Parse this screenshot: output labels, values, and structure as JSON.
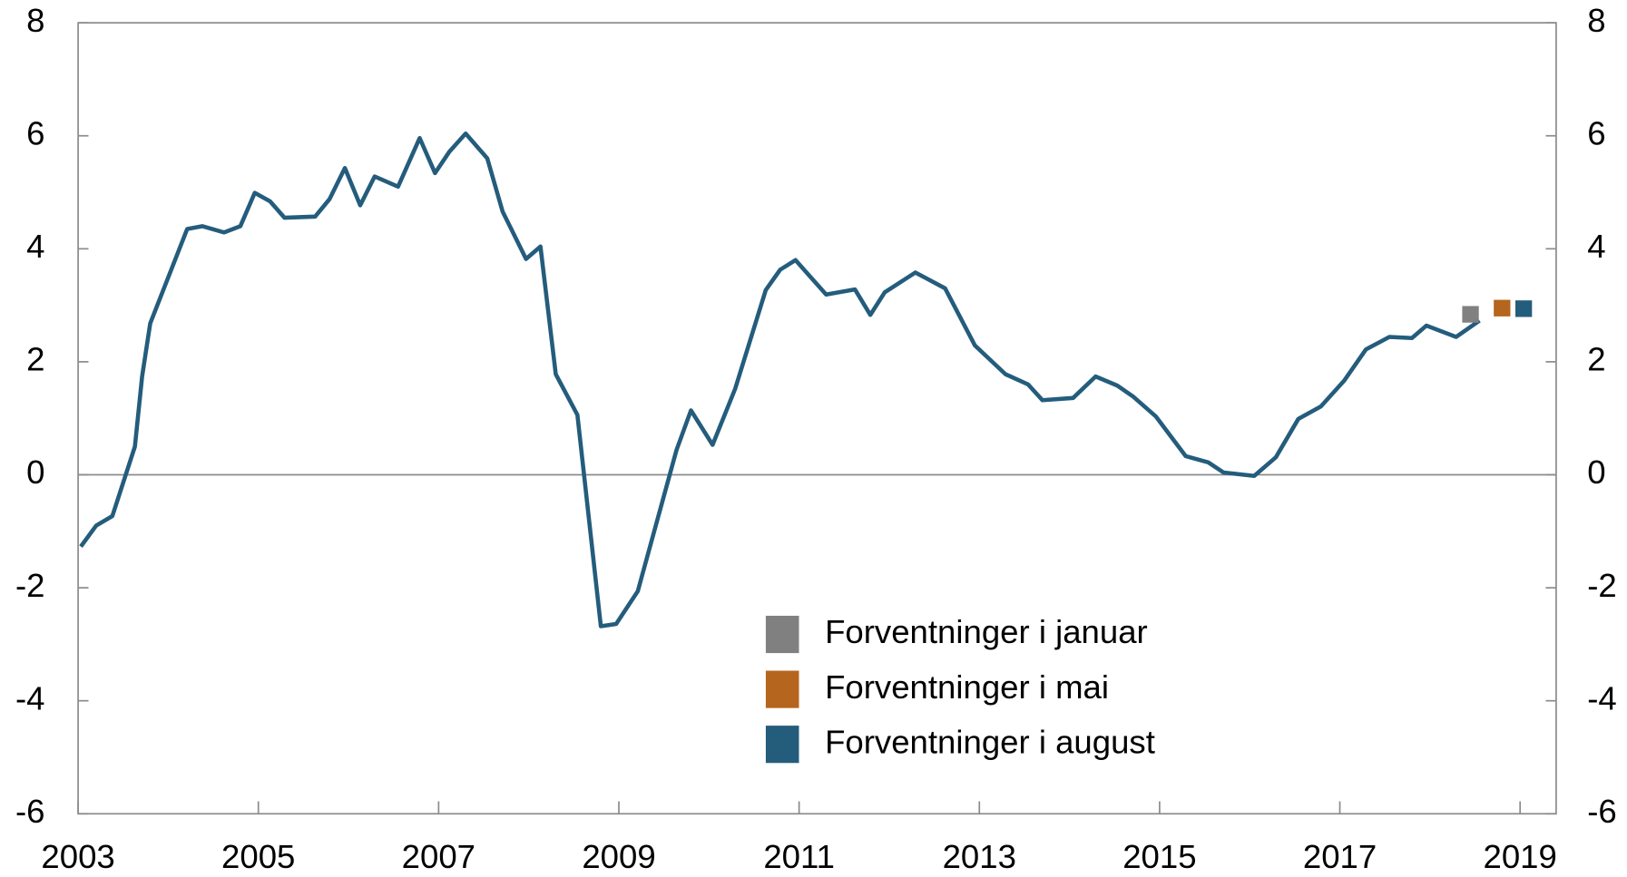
{
  "chart_data": {
    "type": "line",
    "xlim": [
      2003,
      2019.4
    ],
    "xticks": [
      2003,
      2005,
      2007,
      2009,
      2011,
      2013,
      2015,
      2017,
      2019
    ],
    "ylim": [
      -6,
      8
    ],
    "yticks": [
      -6,
      -4,
      -2,
      0,
      2,
      4,
      6,
      8
    ],
    "y2lim": [
      -6,
      8
    ],
    "y2ticks": [
      -6,
      -4,
      -2,
      0,
      2,
      4,
      6,
      8
    ],
    "legend": "lower-center",
    "line": {
      "color": "#245c7c",
      "x": [
        2003.03,
        2003.2,
        2003.38,
        2003.63,
        2003.71,
        2003.8,
        2004.21,
        2004.38,
        2004.62,
        2004.8,
        2004.96,
        2005.13,
        2005.29,
        2005.63,
        2005.79,
        2005.96,
        2006.13,
        2006.29,
        2006.55,
        2006.79,
        2006.96,
        2007.12,
        2007.3,
        2007.54,
        2007.71,
        2007.97,
        2008.13,
        2008.3,
        2008.54,
        2008.8,
        2008.97,
        2009.21,
        2009.64,
        2009.8,
        2010.04,
        2010.29,
        2010.63,
        2010.79,
        2010.96,
        2011.3,
        2011.62,
        2011.79,
        2011.95,
        2012.29,
        2012.62,
        2012.95,
        2013.29,
        2013.54,
        2013.7,
        2014.04,
        2014.29,
        2014.53,
        2014.71,
        2014.96,
        2015.29,
        2015.54,
        2015.71,
        2016.05,
        2016.29,
        2016.54,
        2016.79,
        2017.05,
        2017.29,
        2017.55,
        2017.8,
        2017.96,
        2018.29,
        2018.55
      ],
      "values": [
        -1.27,
        -0.9,
        -0.73,
        0.5,
        1.74,
        2.68,
        4.35,
        4.4,
        4.29,
        4.4,
        4.99,
        4.84,
        4.55,
        4.57,
        4.88,
        5.43,
        4.77,
        5.28,
        5.1,
        5.96,
        5.34,
        5.72,
        6.04,
        5.6,
        4.66,
        3.82,
        4.04,
        1.78,
        1.06,
        -2.68,
        -2.64,
        -2.06,
        0.44,
        1.14,
        0.53,
        1.52,
        3.27,
        3.63,
        3.8,
        3.19,
        3.28,
        2.83,
        3.23,
        3.58,
        3.3,
        2.29,
        1.78,
        1.6,
        1.32,
        1.36,
        1.74,
        1.58,
        1.38,
        1.03,
        0.33,
        0.22,
        0.04,
        -0.02,
        0.31,
        0.99,
        1.21,
        1.67,
        2.22,
        2.44,
        2.42,
        2.64,
        2.44,
        2.73
      ]
    },
    "series": [
      {
        "name": "Forventninger i januar",
        "color": "#808080",
        "x": [
          2018.45
        ],
        "values": [
          2.84
        ]
      },
      {
        "name": "Forventninger i mai",
        "color": "#b5651d",
        "x": [
          2018.8
        ],
        "values": [
          2.95
        ]
      },
      {
        "name": "Forventninger i august",
        "color": "#245c7c",
        "x": [
          2019.04
        ],
        "values": [
          2.94
        ]
      }
    ]
  }
}
